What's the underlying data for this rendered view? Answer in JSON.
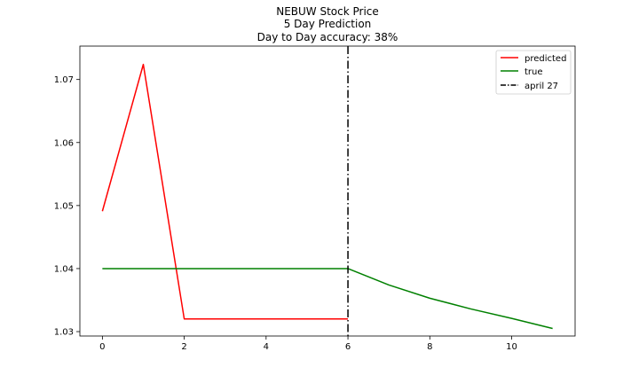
{
  "chart_data": {
    "type": "line",
    "title_lines": [
      "NEBUW Stock Price",
      "5 Day Prediction",
      "Day to Day accuracy: 38%"
    ],
    "xlabel": "",
    "ylabel": "",
    "xlim": [
      -0.55,
      11.55
    ],
    "ylim": [
      1.0293,
      1.0753
    ],
    "x_ticks": [
      0,
      2,
      4,
      6,
      8,
      10
    ],
    "y_ticks": [
      1.03,
      1.04,
      1.05,
      1.06,
      1.07
    ],
    "y_tick_labels": [
      "1.03",
      "1.04",
      "1.05",
      "1.06",
      "1.07"
    ],
    "grid": false,
    "legend_position": "top-right",
    "series": [
      {
        "name": "predicted",
        "color": "#ff0000",
        "style": "solid",
        "x": [
          0,
          1,
          2,
          3,
          4,
          5,
          6
        ],
        "y": [
          1.0491,
          1.0724,
          1.032,
          1.032,
          1.032,
          1.032,
          1.032
        ]
      },
      {
        "name": "true",
        "color": "#008000",
        "style": "solid",
        "x": [
          0,
          1,
          2,
          3,
          4,
          5,
          6,
          7,
          8,
          9,
          10,
          11
        ],
        "y": [
          1.04,
          1.04,
          1.04,
          1.04,
          1.04,
          1.04,
          1.04,
          1.0374,
          1.0353,
          1.0336,
          1.0321,
          1.0305
        ]
      }
    ],
    "vlines": [
      {
        "name": "april 27",
        "x": 6,
        "color": "#000000",
        "style": "dashdot"
      }
    ]
  }
}
